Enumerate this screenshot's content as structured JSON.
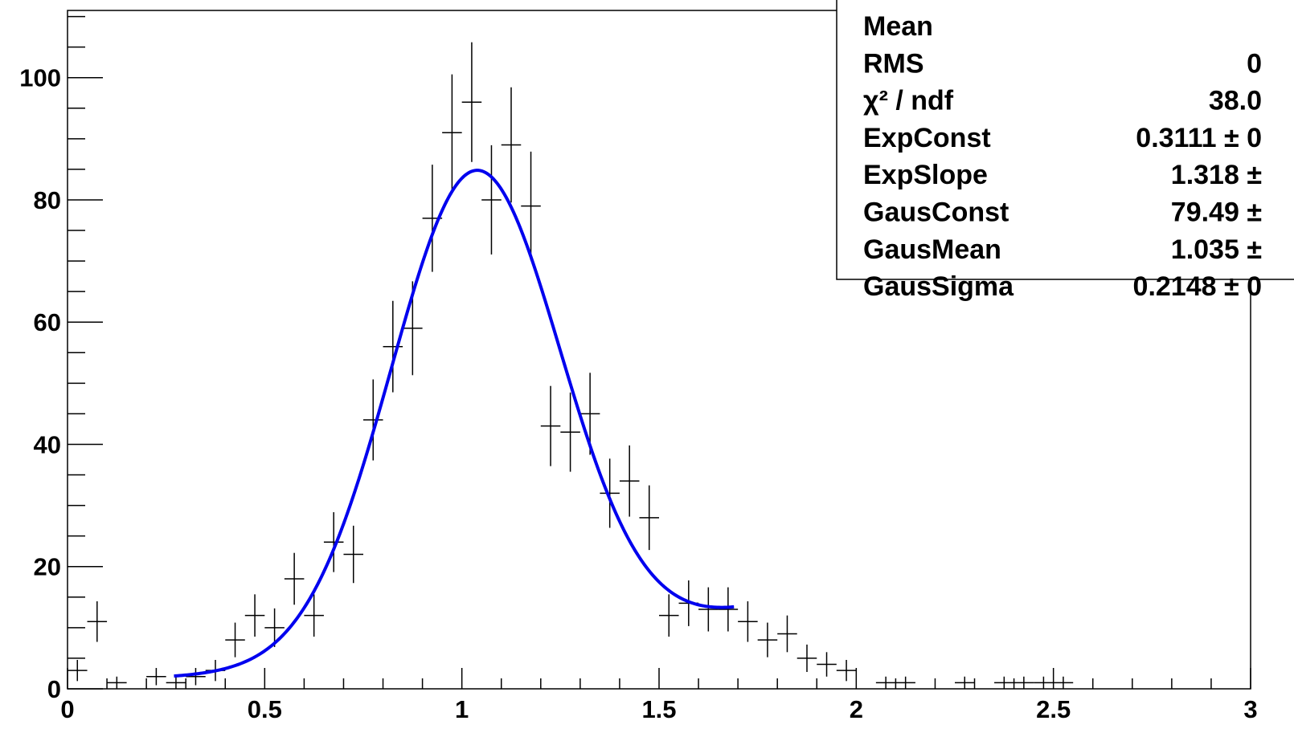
{
  "chart_data": {
    "type": "histogram",
    "bins": [
      0,
      0.05,
      0.1,
      0.15,
      0.2,
      0.25,
      0.3,
      0.35,
      0.4,
      0.45,
      0.5,
      0.55,
      0.6,
      0.65,
      0.7,
      0.75,
      0.8,
      0.85,
      0.9,
      0.95,
      1,
      1.05,
      1.1,
      1.15,
      1.2,
      1.25,
      1.3,
      1.35,
      1.4,
      1.45,
      1.5,
      1.55,
      1.6,
      1.65,
      1.7,
      1.75,
      1.8,
      1.85,
      1.9,
      1.95,
      2,
      2.05,
      2.1,
      2.15,
      2.2,
      2.25,
      2.3,
      2.35,
      2.4,
      2.45,
      2.5,
      2.55,
      2.6,
      2.65,
      2.7,
      2.75,
      2.8,
      2.85,
      2.9,
      2.95,
      3
    ],
    "values": [
      3,
      11,
      1,
      0,
      2,
      1,
      2,
      3,
      8,
      12,
      10,
      18,
      12,
      24,
      22,
      44,
      56,
      59,
      77,
      91,
      96,
      80,
      89,
      79,
      43,
      42,
      45,
      32,
      34,
      28,
      12,
      14,
      13,
      13,
      11,
      8,
      9,
      5,
      4,
      3,
      0,
      1,
      1,
      0,
      0,
      1,
      0,
      1,
      1,
      1,
      1,
      0,
      0,
      0,
      0,
      0,
      0,
      0,
      0,
      0
    ],
    "errors": [
      1.73,
      3.32,
      1,
      0,
      1.41,
      1,
      1.41,
      1.73,
      2.83,
      3.46,
      3.16,
      4.24,
      3.46,
      4.9,
      4.69,
      6.63,
      7.48,
      7.68,
      8.77,
      9.54,
      9.8,
      8.94,
      9.43,
      8.89,
      6.56,
      6.48,
      6.71,
      5.66,
      5.83,
      5.29,
      3.46,
      3.74,
      3.61,
      3.61,
      3.32,
      2.83,
      3,
      2.24,
      2,
      1.73,
      0,
      1,
      1,
      0,
      0,
      1,
      0,
      1,
      1,
      1,
      1,
      0,
      0,
      0,
      0,
      0,
      0,
      0,
      0,
      0
    ],
    "color": "#000000",
    "fit": {
      "color": "#0000ee",
      "range": [
        0.27,
        1.69
      ],
      "exp_const": 0.3111,
      "exp_slope": 1.318,
      "gaus_const": 79.49,
      "gaus_mean": 1.035,
      "gaus_sigma": 0.2148
    },
    "xlim": [
      0,
      3
    ],
    "xticks": [
      0,
      0.5,
      1,
      1.5,
      2,
      2.5,
      3
    ],
    "ylim": [
      0,
      111
    ],
    "yticks": [
      0,
      20,
      40,
      60,
      80,
      100
    ],
    "stats": [
      {
        "name": "Mean"
      },
      {
        "name": "RMS",
        "value": "0"
      },
      {
        "name": "χ² / ndf",
        "value": "38.0"
      },
      {
        "name": "ExpConst",
        "value": "0.3111 ± 0"
      },
      {
        "name": "ExpSlope",
        "value": "1.318 ±"
      },
      {
        "name": "GausConst",
        "value": "79.49 ±"
      },
      {
        "name": "GausMean",
        "value": "1.035 ±"
      },
      {
        "name": "GausSigma",
        "value": "0.2148 ± 0"
      }
    ]
  }
}
